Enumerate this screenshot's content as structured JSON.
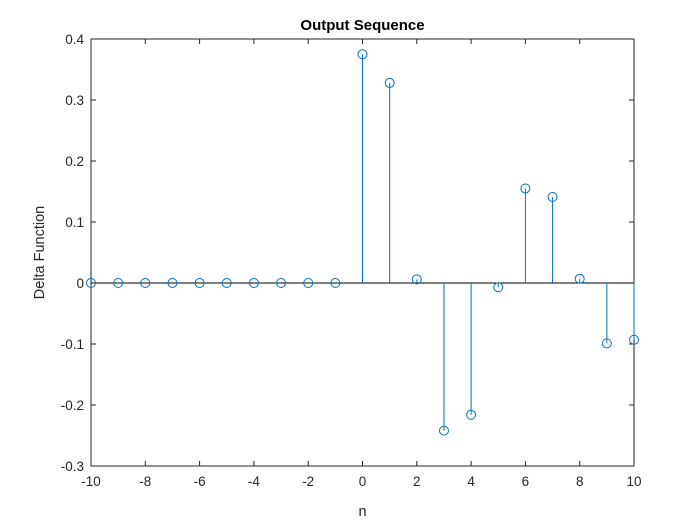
{
  "chart_data": {
    "type": "stem",
    "title": "Output Sequence",
    "xlabel": "n",
    "ylabel": "Delta Function",
    "xlim": [
      -10,
      10
    ],
    "ylim": [
      -0.3,
      0.4
    ],
    "grid": false,
    "xticks": [
      -10,
      -8,
      -6,
      -4,
      -2,
      0,
      2,
      4,
      6,
      8,
      10
    ],
    "xtick_labels": [
      "-10",
      "-8",
      "-6",
      "-4",
      "-2",
      "0",
      "2",
      "4",
      "6",
      "8",
      "10"
    ],
    "yticks": [
      0.4,
      0.3,
      0.2,
      0.1,
      0,
      -0.1,
      -0.2,
      -0.3
    ],
    "ytick_labels": [
      "0.4",
      "0.3",
      "0.2",
      "0.1",
      "0",
      "-0.1",
      "-0.2",
      "-0.3"
    ],
    "x": [
      -10,
      -9,
      -8,
      -7,
      -6,
      -5,
      -4,
      -3,
      -2,
      -1,
      0,
      1,
      2,
      3,
      4,
      5,
      6,
      7,
      8,
      9,
      10
    ],
    "values": [
      0,
      0,
      0,
      0,
      0,
      0,
      0,
      0,
      0,
      0,
      0.375,
      0.328,
      0.006,
      -0.242,
      -0.216,
      -0.007,
      0.155,
      0.141,
      0.007,
      -0.099,
      -0.093
    ],
    "series_color": "#0072BD",
    "axis_color": "#262626"
  }
}
